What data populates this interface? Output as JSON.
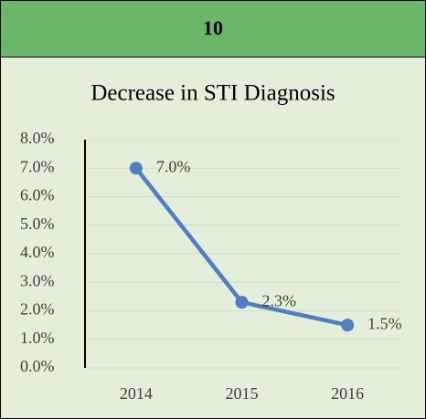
{
  "card": {
    "title": "10"
  },
  "chart_data": {
    "type": "line",
    "title": "Decrease in STI Diagnosis",
    "categories": [
      "2014",
      "2015",
      "2016"
    ],
    "series": [
      {
        "name": "Decrease in STI Diagnosis",
        "color": "#4f7fc0",
        "values": [
          7.0,
          2.3,
          1.5
        ],
        "value_labels": [
          "7.0%",
          "2.3%",
          "1.5%"
        ]
      }
    ],
    "ylim": [
      0,
      8
    ],
    "yticks": [
      {
        "value": 0,
        "label": "0.0%"
      },
      {
        "value": 1,
        "label": "1.0%"
      },
      {
        "value": 2,
        "label": "2.0%"
      },
      {
        "value": 3,
        "label": "3.0%"
      },
      {
        "value": 4,
        "label": "4.0%"
      },
      {
        "value": 5,
        "label": "5.0%"
      },
      {
        "value": 6,
        "label": "6.0%"
      },
      {
        "value": 7,
        "label": "7.0%"
      },
      {
        "value": 8,
        "label": "8.0%"
      }
    ],
    "grid": true
  }
}
